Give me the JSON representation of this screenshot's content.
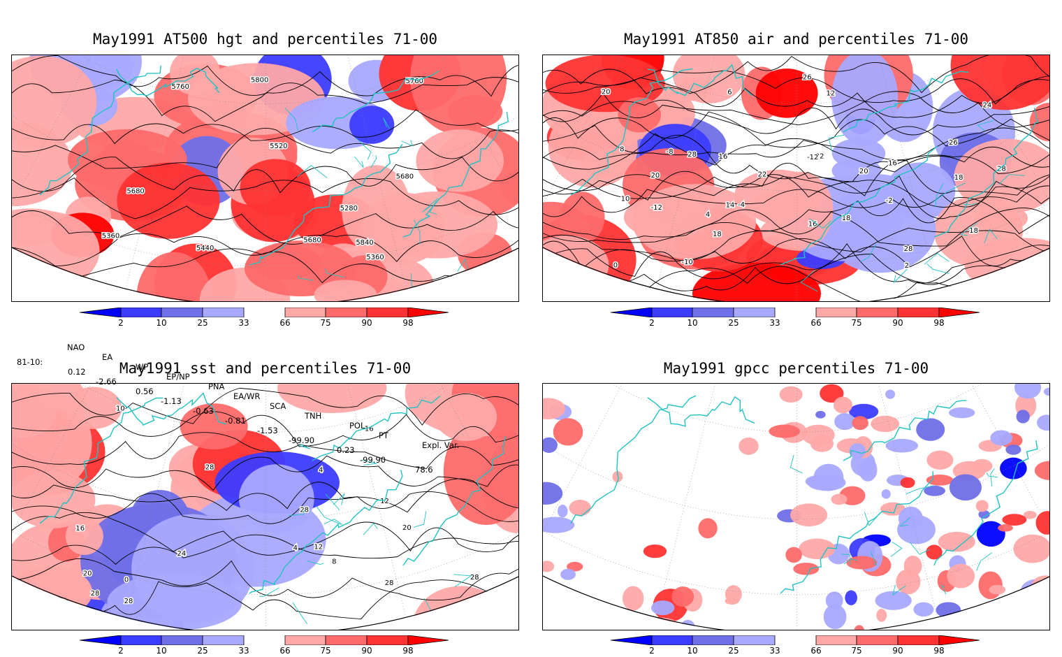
{
  "panels": [
    {
      "title": "May1991 AT500 hgt and percentiles 71-00",
      "contour_labels": [
        "5360",
        "5280",
        "5680",
        "5360",
        "5440",
        "5520",
        "5680",
        "5760",
        "5800",
        "5680",
        "5760",
        "5840"
      ]
    },
    {
      "title": "May1991 AT850 air and percentiles 71-00",
      "contour_labels": [
        "22",
        "20",
        "16",
        "18",
        "-12",
        "-12",
        "-10",
        "-8",
        "-4",
        "-2",
        "0",
        "2",
        "4",
        "6",
        "8",
        "10",
        "12",
        "14",
        "16",
        "18",
        "16",
        "18",
        "20",
        "22",
        "24",
        "26",
        "28",
        "28",
        "20",
        "26",
        "28",
        "18"
      ]
    },
    {
      "title": "May1991 sst and percentiles 71-00",
      "contour_labels": [
        "28",
        "28",
        "28",
        "10",
        "4",
        "0",
        "4",
        "8",
        "12",
        "16",
        "20",
        "16",
        "20",
        "12",
        "28",
        "24",
        "28",
        "28"
      ]
    },
    {
      "title": "May1991 gpcc percentiles 71-00",
      "contour_labels": []
    }
  ],
  "colorbar": {
    "ticks": [
      "2",
      "10",
      "25",
      "33",
      "66",
      "75",
      "90",
      "98"
    ],
    "colors": {
      "below_2": "#0000ff",
      "p2_10": "#3c3cff",
      "p10_25": "#6f6fe8",
      "p25_33": "#a9a9ff",
      "p66_75": "#ffa8a8",
      "p75_90": "#ff6a6a",
      "p90_98": "#ff3333",
      "above_98": "#ff0000"
    }
  },
  "indices": {
    "headers": [
      "NAO",
      "EA",
      "WP",
      "EP/NP",
      "PNA",
      "EA/WR",
      "SCA",
      "TNH",
      "POL",
      "PT",
      "Expl. Var."
    ],
    "row_label": "81-10:",
    "values": [
      "0.12",
      "-2.66",
      "0.56",
      "-1.13",
      "-0.63",
      "-0.81",
      "-1.53",
      "-99.90",
      "0.23",
      "-99.90",
      "78.6"
    ]
  },
  "style": {
    "coast_color": "#22c2c2",
    "grid_color": "#888888"
  }
}
